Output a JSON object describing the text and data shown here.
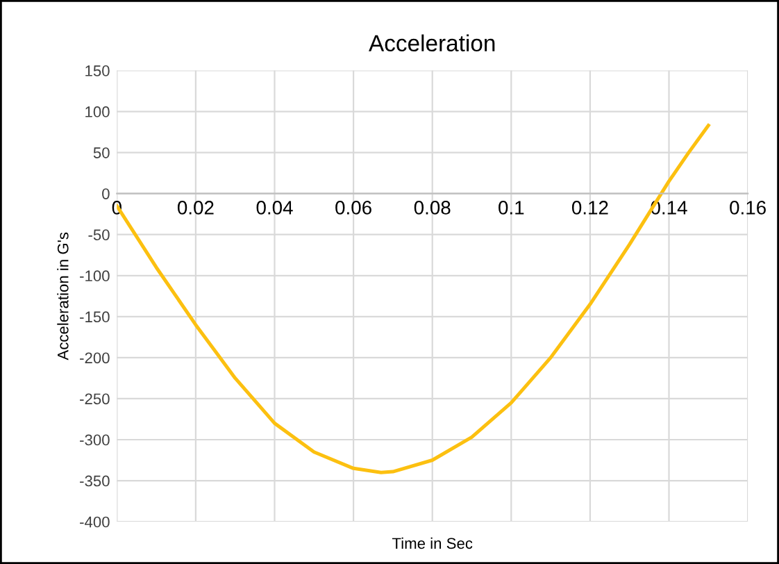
{
  "chart_data": {
    "type": "line",
    "title": "Acceleration",
    "xlabel": "Time in Sec",
    "ylabel": "Acceleration in G's",
    "x": [
      0,
      0.01,
      0.02,
      0.03,
      0.04,
      0.05,
      0.06,
      0.067,
      0.07,
      0.08,
      0.09,
      0.1,
      0.11,
      0.12,
      0.13,
      0.14,
      0.145,
      0.15
    ],
    "series": [
      {
        "color": "#fcc010",
        "values": [
          -15,
          -90,
          -160,
          -225,
          -280,
          -315,
          -335,
          -340,
          -339,
          -325,
          -297,
          -255,
          -200,
          -135,
          -62,
          15,
          50,
          83
        ]
      }
    ],
    "xlim": [
      0,
      0.16
    ],
    "xticks": [
      0,
      0.02,
      0.04,
      0.06,
      0.08,
      0.1,
      0.12,
      0.14,
      0.16
    ],
    "ylim": [
      -400,
      150
    ],
    "yticks": [
      -400,
      -350,
      -300,
      -250,
      -200,
      -150,
      -100,
      -50,
      0,
      50,
      100,
      150
    ],
    "grid": true,
    "marker": "none",
    "line_style": "solid"
  }
}
